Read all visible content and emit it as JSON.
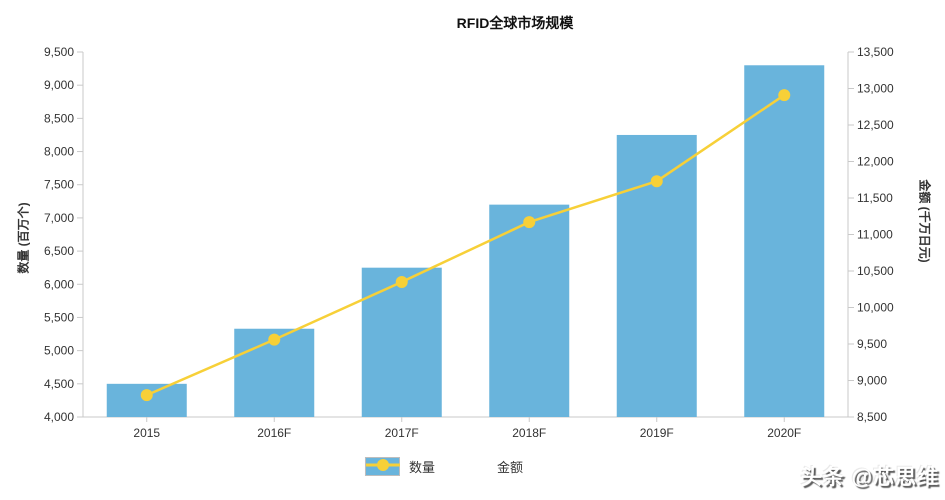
{
  "title": "RFID全球市场规模",
  "watermark": "头条 @芯思维",
  "colors": {
    "bar": "#69B4DC",
    "line": "#F7D038",
    "axis_line": "#C9C9C9",
    "tick_text": "#333333"
  },
  "chart_data": {
    "type": "bar",
    "subtype": "bar+line combo, dual y-axis",
    "title": "RFID全球市场规模",
    "categories": [
      "2015",
      "2016F",
      "2017F",
      "2018F",
      "2019F",
      "2020F"
    ],
    "series": [
      {
        "name": "数量",
        "type": "bar",
        "axis": "left",
        "color": "#69B4DC",
        "values": [
          4500,
          5330,
          6250,
          7200,
          8250,
          9300
        ]
      },
      {
        "name": "金额",
        "type": "line",
        "axis": "right",
        "color": "#F7D038",
        "values": [
          8800,
          9560,
          10350,
          11170,
          11730,
          12910
        ]
      }
    ],
    "y_left": {
      "label": "数量 (百万个)",
      "min": 4000,
      "max": 9500,
      "step": 500
    },
    "y_right": {
      "label": "金额 (千万日元)",
      "min": 8500,
      "max": 13500,
      "step": 500
    },
    "grid": false,
    "legend_position": "bottom-center",
    "legend": [
      "数量",
      "金额"
    ]
  }
}
